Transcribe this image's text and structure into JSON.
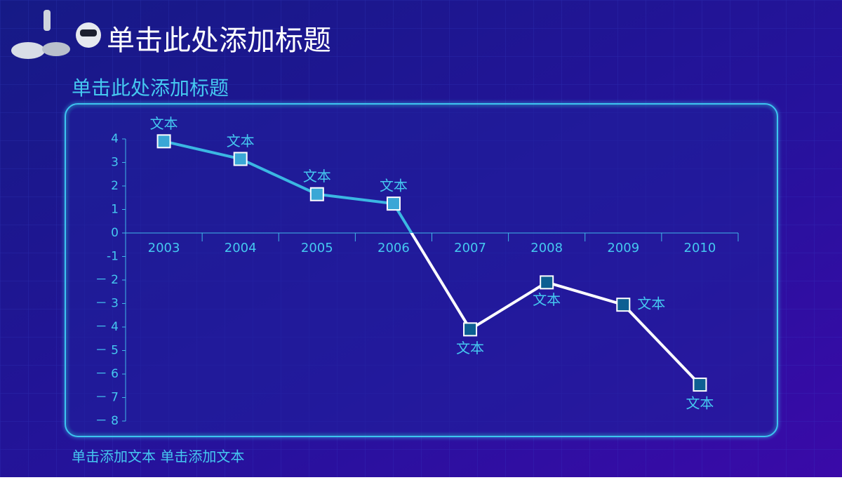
{
  "header": {
    "title": "单击此处添加标题"
  },
  "chart_data": {
    "type": "line",
    "title": "单击此处添加标题",
    "categories": [
      "2003",
      "2004",
      "2005",
      "2006",
      "2007",
      "2008",
      "2009",
      "2010"
    ],
    "values": [
      3.9,
      3.15,
      1.65,
      1.25,
      -4.1,
      -2.1,
      -3.05,
      -6.45
    ],
    "annotations": [
      "文本",
      "文本",
      "文本",
      "文本",
      "文本",
      "文本",
      "文本",
      "文本"
    ],
    "color_positive": "#3bb7e3",
    "color_negative": "#ffffff",
    "marker_positive": "#3aa7d6",
    "marker_negative": "#0d5f92",
    "ylim": [
      -8,
      4
    ],
    "yticks": [
      4,
      3,
      2,
      1,
      0,
      -1,
      {
        "value": -2,
        "label": "－ 2"
      },
      {
        "value": -3,
        "label": "－ 3"
      },
      {
        "value": -4,
        "label": "－ 4"
      },
      {
        "value": -5,
        "label": "－ 5"
      },
      {
        "value": -6,
        "label": "－ 6"
      },
      {
        "value": -7,
        "label": "－ 7"
      },
      {
        "value": -8,
        "label": "－ 8"
      }
    ]
  },
  "footer": {
    "text": "单击添加文本 单击添加文本"
  }
}
